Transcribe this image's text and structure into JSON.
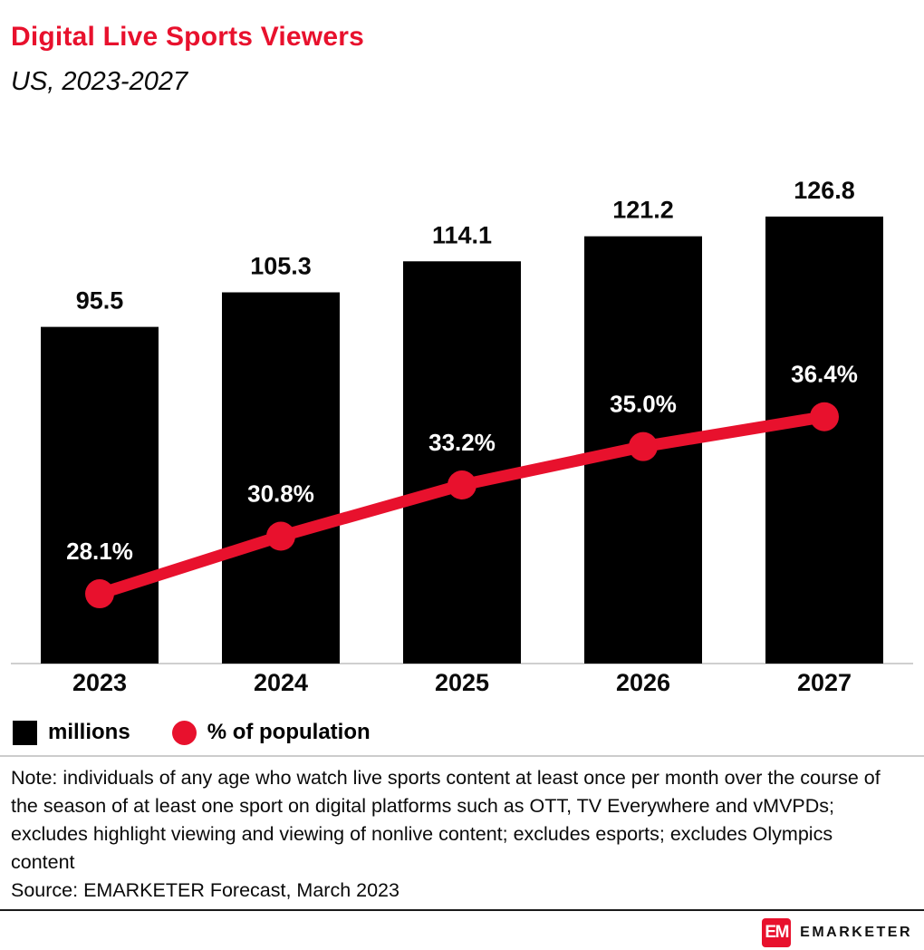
{
  "header": {
    "title": "Digital Live Sports Viewers",
    "subtitle": "US, 2023-2027"
  },
  "chart_data": {
    "type": "bar",
    "title": "Digital Live Sports Viewers",
    "subtitle": "US, 2023-2027",
    "categories": [
      "2023",
      "2024",
      "2025",
      "2026",
      "2027"
    ],
    "series": [
      {
        "name": "millions",
        "type": "bar",
        "color": "#000000",
        "values": [
          95.5,
          105.3,
          114.1,
          121.2,
          126.8
        ],
        "labels": [
          "95.5",
          "105.3",
          "114.1",
          "121.2",
          "126.8"
        ]
      },
      {
        "name": "% of population",
        "type": "line",
        "color": "#e8112d",
        "values": [
          28.1,
          30.8,
          33.2,
          35.0,
          36.4
        ],
        "labels": [
          "28.1%",
          "30.8%",
          "33.2%",
          "35.0%",
          "36.4%"
        ]
      }
    ],
    "xlabel": "",
    "ylabel": "",
    "bar_axis_range": [
      0,
      135
    ],
    "line_axis_range": [
      25,
      40
    ],
    "grid": false,
    "legend_position": "bottom-left"
  },
  "legend": {
    "items": [
      {
        "label": "millions",
        "swatch": "square",
        "color": "#000000"
      },
      {
        "label": "% of population",
        "swatch": "circle",
        "color": "#e8112d"
      }
    ]
  },
  "annotations": {
    "note": "Note: individuals of any age who watch live sports content at least once per month over the course of the season of at least one sport on digital platforms such as OTT, TV Everywhere and vMVPDs; excludes highlight viewing and viewing of nonlive content; excludes esports; excludes Olympics content",
    "source": "Source: EMARKETER Forecast, March 2023"
  },
  "footer": {
    "logo_monogram": "EM",
    "brand": "EMARKETER"
  },
  "colors": {
    "accent_red": "#e8112d",
    "bar_black": "#000000",
    "divider_light": "#cccccc",
    "divider_dark": "#1a1a1a"
  }
}
